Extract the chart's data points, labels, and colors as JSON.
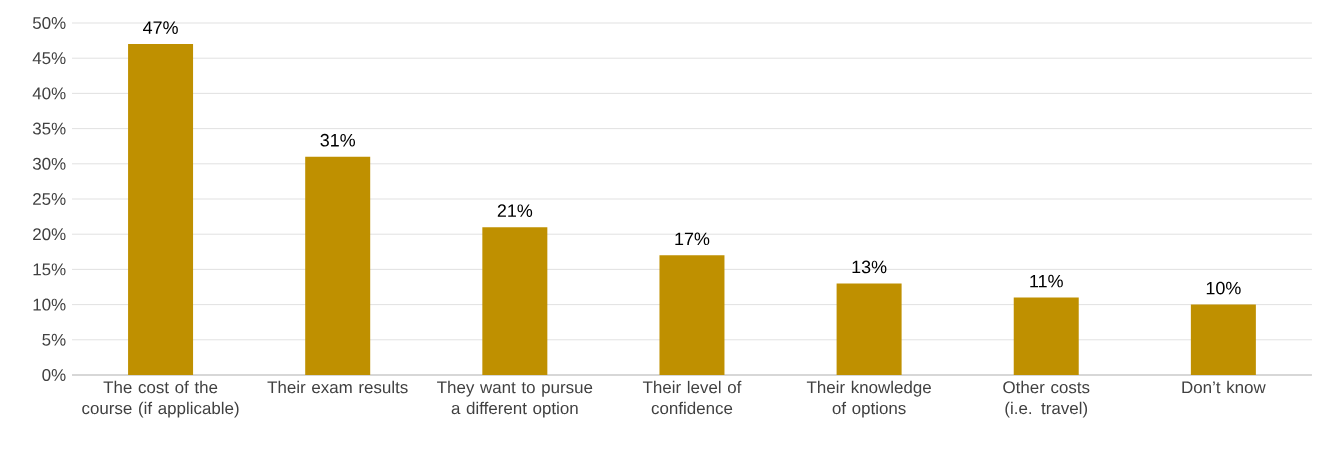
{
  "chart_data": {
    "type": "bar",
    "categories": [
      "The cost of the course (if applicable)",
      "Their exam results",
      "They want to pursue a different option",
      "Their level of confidence",
      "Their knowledge of options",
      "Other costs (i.e. travel)",
      "Don’t know"
    ],
    "values": [
      47,
      31,
      21,
      17,
      13,
      11,
      10
    ],
    "value_labels": [
      "47%",
      "31%",
      "21%",
      "17%",
      "13%",
      "11%",
      "10%"
    ],
    "color": "#bf9000",
    "ylim": [
      0,
      50
    ],
    "yticks": [
      {
        "value": 0,
        "label": "0%"
      },
      {
        "value": 5,
        "label": "5%"
      },
      {
        "value": 10,
        "label": "10%"
      },
      {
        "value": 15,
        "label": "15%"
      },
      {
        "value": 20,
        "label": "20%"
      },
      {
        "value": 25,
        "label": "25%"
      },
      {
        "value": 30,
        "label": "30%"
      },
      {
        "value": 35,
        "label": "35%"
      },
      {
        "value": 40,
        "label": "40%"
      },
      {
        "value": 45,
        "label": "45%"
      },
      {
        "value": 50,
        "label": "50%"
      }
    ],
    "grid": "y"
  }
}
